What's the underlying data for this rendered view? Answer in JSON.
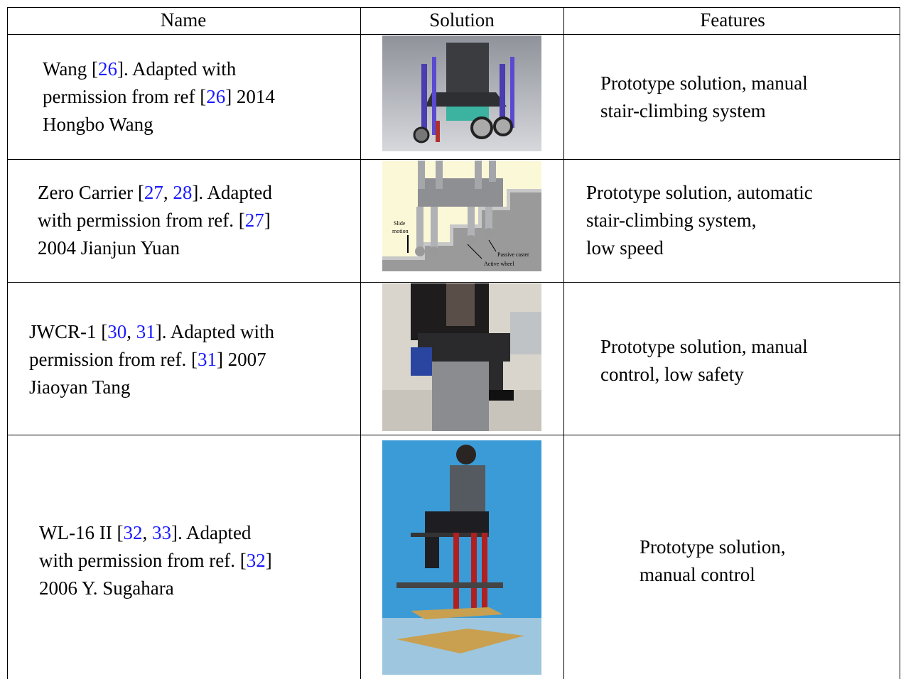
{
  "table": {
    "header": [
      "Name",
      "Solution",
      "Features"
    ],
    "rows": [
      {
        "name": [
          "Wang [26]. Adapted with",
          "permission from ref [26] 2014",
          "Hongbo Wang"
        ],
        "features": [
          "Prototype solution, manual",
          "stair-climbing system"
        ]
      },
      {
        "name": [
          "Zero Carrier [27, 28]. Adapted",
          "with permission from ref. [27]",
          "2004 Jianjun Yuan"
        ],
        "image_labels": [
          "Slide",
          "motion",
          "Passive caster",
          "Active wheel"
        ],
        "features": [
          "Prototype solution, automatic",
          "stair-climbing system,",
          "low speed"
        ]
      },
      {
        "name": [
          "JWCR-1 [30, 31]. Adapted with",
          "permission from ref. [31] 2007",
          "Jiaoyan Tang"
        ],
        "features": [
          "Prototype solution, manual",
          "control, low safety"
        ]
      },
      {
        "name": [
          "WL-16 II [32, 33]. Adapted",
          "with permission from ref. [32]",
          "2006 Y. Sugahara"
        ],
        "features": [
          "Prototype solution,",
          "manual control"
        ]
      }
    ]
  }
}
